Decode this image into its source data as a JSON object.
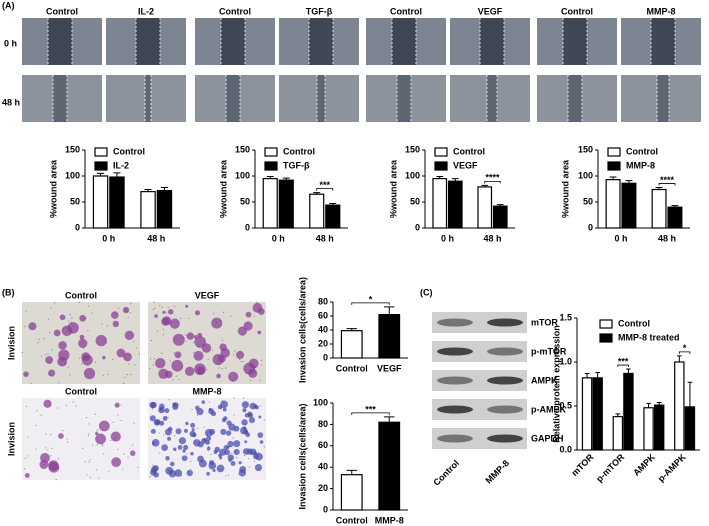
{
  "figure": {
    "panel_labels": [
      "(A)",
      "(B)",
      "(C)"
    ],
    "wound_images": [
      {
        "left": "Control",
        "right": "IL-2"
      },
      {
        "left": "Control",
        "right": "TGF-β"
      },
      {
        "left": "Control",
        "right": "VEGF"
      },
      {
        "left": "Control",
        "right": "MMP-8"
      }
    ],
    "time_labels": [
      "0 h",
      "48 h"
    ],
    "invasion_images": [
      {
        "left": "Control",
        "right": "VEGF"
      },
      {
        "left": "Control",
        "right": "MMP-8"
      }
    ],
    "invasion_row_label": "Invision",
    "blot": {
      "rows": [
        "mTOR",
        "p-mTOR",
        "AMPK",
        "p-AMPK",
        "GAPDH"
      ],
      "lanes": [
        "Control",
        "MMP-8"
      ]
    }
  },
  "chart_data": [
    {
      "type": "bar",
      "ylabel": "%wound area",
      "categories": [
        "0 h",
        "48 h"
      ],
      "series": [
        {
          "name": "Control",
          "color": "#ffffff",
          "values": [
            100,
            70
          ],
          "errors": [
            5,
            4
          ]
        },
        {
          "name": "IL-2",
          "color": "#000000",
          "values": [
            98,
            72
          ],
          "errors": [
            8,
            6
          ]
        }
      ],
      "ylim": [
        0,
        150
      ],
      "yticks": [
        0,
        50,
        100,
        150
      ]
    },
    {
      "type": "bar",
      "ylabel": "%wound area",
      "categories": [
        "0 h",
        "48 h"
      ],
      "series": [
        {
          "name": "Control",
          "color": "#ffffff",
          "values": [
            95,
            65
          ],
          "errors": [
            4,
            3
          ]
        },
        {
          "name": "TGF-β",
          "color": "#000000",
          "values": [
            92,
            44
          ],
          "errors": [
            4,
            3
          ]
        }
      ],
      "ylim": [
        0,
        150
      ],
      "yticks": [
        0,
        50,
        100,
        150
      ],
      "annotations": [
        {
          "text": "***",
          "category": "48 h"
        }
      ]
    },
    {
      "type": "bar",
      "ylabel": "%wound area",
      "categories": [
        "0 h",
        "48 h"
      ],
      "series": [
        {
          "name": "Control",
          "color": "#ffffff",
          "values": [
            95,
            79
          ],
          "errors": [
            4,
            3
          ]
        },
        {
          "name": "VEGF",
          "color": "#000000",
          "values": [
            90,
            42
          ],
          "errors": [
            5,
            3
          ]
        }
      ],
      "ylim": [
        0,
        150
      ],
      "yticks": [
        0,
        50,
        100,
        150
      ],
      "annotations": [
        {
          "text": "****",
          "category": "48 h"
        }
      ]
    },
    {
      "type": "bar",
      "ylabel": "%wound area",
      "categories": [
        "0 h",
        "48 h"
      ],
      "series": [
        {
          "name": "Control",
          "color": "#ffffff",
          "values": [
            93,
            74
          ],
          "errors": [
            5,
            4
          ]
        },
        {
          "name": "MMP-8",
          "color": "#000000",
          "values": [
            86,
            40
          ],
          "errors": [
            5,
            3
          ]
        }
      ],
      "ylim": [
        0,
        150
      ],
      "yticks": [
        0,
        50,
        100,
        150
      ],
      "annotations": [
        {
          "text": "****",
          "category": "48 h"
        }
      ]
    },
    {
      "type": "bar",
      "ylabel": "Invasion cells(cells/area)",
      "categories": [
        "Control",
        "VEGF"
      ],
      "values": [
        39,
        62
      ],
      "errors": [
        3,
        11
      ],
      "colors": [
        "#ffffff",
        "#000000"
      ],
      "ylim": [
        0,
        80
      ],
      "yticks": [
        0,
        20,
        40,
        60,
        80
      ],
      "annotations": [
        {
          "text": "*"
        }
      ]
    },
    {
      "type": "bar",
      "ylabel": "Invasion cells(cells/area)",
      "categories": [
        "Control",
        "MMP-8"
      ],
      "values": [
        33,
        82
      ],
      "errors": [
        4,
        5
      ],
      "colors": [
        "#ffffff",
        "#000000"
      ],
      "ylim": [
        0,
        100
      ],
      "yticks": [
        0,
        20,
        40,
        60,
        80,
        100
      ],
      "annotations": [
        {
          "text": "***"
        }
      ]
    },
    {
      "type": "bar",
      "ylabel": "Relative protein expression",
      "categories": [
        "mTOR",
        "p-mTOR",
        "AMPK",
        "p-AMPK"
      ],
      "series": [
        {
          "name": "Control",
          "color": "#ffffff",
          "values": [
            0.82,
            0.38,
            0.48,
            1.0
          ],
          "errors": [
            0.05,
            0.03,
            0.05,
            0.07
          ]
        },
        {
          "name": "MMP-8 treated",
          "color": "#000000",
          "values": [
            0.82,
            0.87,
            0.51,
            0.49
          ],
          "errors": [
            0.06,
            0.05,
            0.03,
            0.28
          ]
        }
      ],
      "ylim": [
        0,
        1.5
      ],
      "yticks": [
        {
          "value": 0,
          "label": "0.0"
        },
        {
          "value": 0.5,
          "label": "0.5"
        },
        {
          "value": 1,
          "label": "1.0"
        },
        {
          "value": 1.5,
          "label": "1.5"
        }
      ],
      "annotations": [
        {
          "text": "***",
          "category": "p-mTOR"
        },
        {
          "text": "*",
          "category": "p-AMPK"
        }
      ]
    }
  ]
}
